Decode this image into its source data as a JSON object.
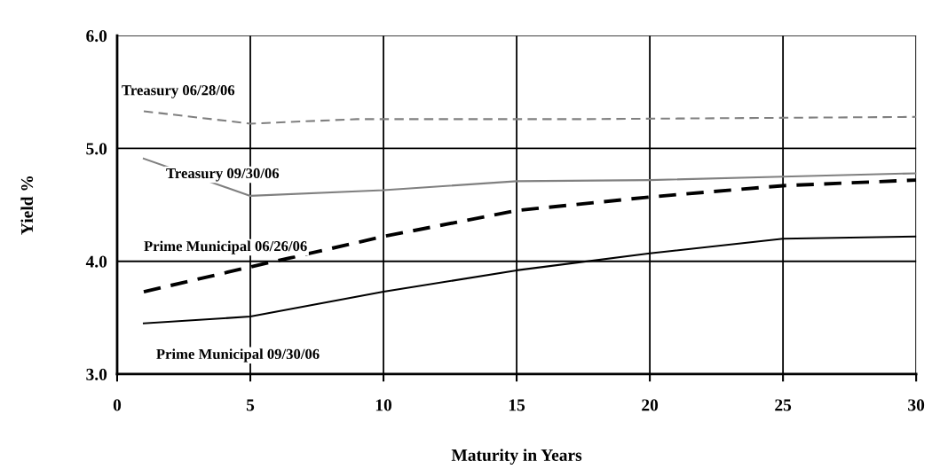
{
  "chart_data": {
    "type": "line",
    "xlabel": "Maturity in Years",
    "ylabel": "Yield %",
    "xlim": [
      0,
      30
    ],
    "xticks": [
      0,
      5,
      10,
      15,
      20,
      25,
      30
    ],
    "ylim": [
      3.0,
      6.0
    ],
    "yticks": [
      {
        "value": 3,
        "label": "3.0"
      },
      {
        "value": 4,
        "label": "4.0"
      },
      {
        "value": 5,
        "label": "5.0"
      },
      {
        "value": 6,
        "label": "6.0"
      }
    ],
    "grid": true,
    "legend": false,
    "series": [
      {
        "name": "Treasury 06/28/06",
        "color": "#808080",
        "line_style": "dashed",
        "x": [
          1,
          5,
          9,
          17.5,
          30
        ],
        "values": [
          5.33,
          5.22,
          5.26,
          5.26,
          5.28
        ]
      },
      {
        "name": "Treasury 09/30/06",
        "color": "#808080",
        "line_style": "solid",
        "x": [
          1,
          5,
          10,
          15,
          20,
          25,
          30
        ],
        "values": [
          4.91,
          4.58,
          4.63,
          4.71,
          4.72,
          4.75,
          4.78
        ]
      },
      {
        "name": "Prime Municipal 06/26/06",
        "color": "#000000",
        "line_style": "dashed",
        "x": [
          1,
          5,
          10,
          15,
          20,
          25,
          30
        ],
        "values": [
          3.73,
          3.95,
          4.22,
          4.45,
          4.57,
          4.67,
          4.72
        ]
      },
      {
        "name": "Prime Municipal 09/30/06",
        "color": "#000000",
        "line_style": "solid",
        "x": [
          1,
          5,
          10,
          15,
          20,
          25,
          30
        ],
        "values": [
          3.45,
          3.51,
          3.73,
          3.92,
          4.07,
          4.2,
          4.22
        ]
      }
    ]
  }
}
